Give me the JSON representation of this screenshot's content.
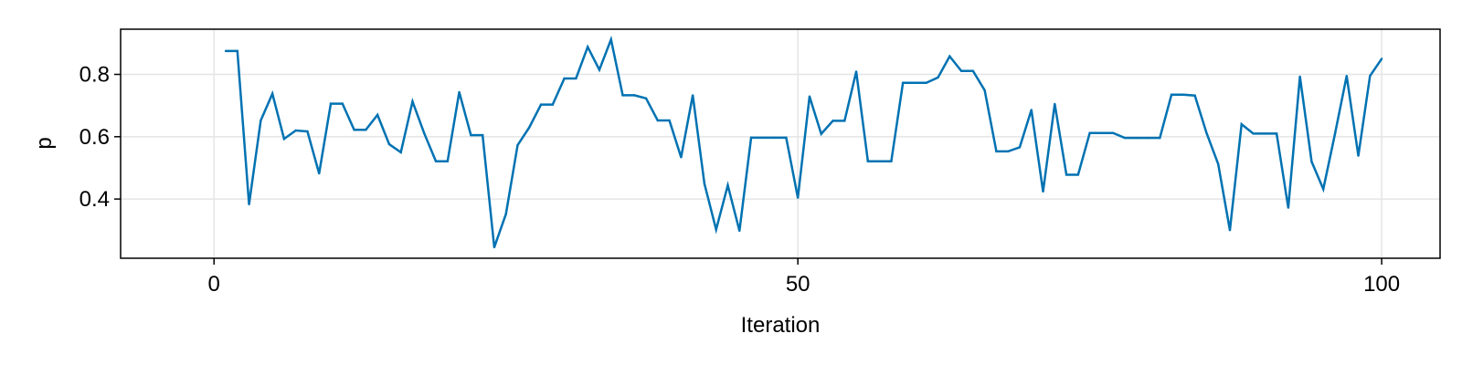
{
  "chart_data": {
    "type": "line",
    "title": "",
    "xlabel": "Iteration",
    "ylabel": "p",
    "xlim": [
      -8,
      105
    ],
    "ylim": [
      0.21,
      0.945
    ],
    "x_ticks": [
      0,
      50,
      100
    ],
    "x_tick_labels": [
      "0",
      "50",
      "100"
    ],
    "y_ticks": [
      0.4,
      0.6,
      0.8
    ],
    "y_tick_labels": [
      "0.4",
      "0.6",
      "0.8"
    ],
    "grid": true,
    "legend": "none",
    "series": [
      {
        "color": "#0072b2",
        "x": [
          1,
          2,
          3,
          4,
          5,
          6,
          7,
          8,
          9,
          10,
          11,
          12,
          13,
          14,
          15,
          16,
          17,
          18,
          19,
          20,
          21,
          22,
          23,
          24,
          25,
          26,
          27,
          28,
          29,
          30,
          31,
          32,
          33,
          34,
          35,
          36,
          37,
          38,
          39,
          40,
          41,
          42,
          43,
          44,
          45,
          46,
          47,
          48,
          49,
          50,
          51,
          52,
          53,
          54,
          55,
          56,
          57,
          58,
          59,
          60,
          61,
          62,
          63,
          64,
          65,
          66,
          67,
          68,
          69,
          70,
          71,
          72,
          73,
          74,
          75,
          76,
          77,
          78,
          79,
          80,
          81,
          82,
          83,
          84,
          85,
          86,
          87,
          88,
          89,
          90,
          91,
          92,
          93,
          94,
          95,
          96,
          97,
          98,
          99,
          100
        ],
        "values": [
          0.875,
          0.875,
          0.383,
          0.652,
          0.738,
          0.593,
          0.62,
          0.617,
          0.482,
          0.706,
          0.706,
          0.622,
          0.622,
          0.67,
          0.576,
          0.55,
          0.713,
          0.611,
          0.521,
          0.521,
          0.743,
          0.605,
          0.605,
          0.245,
          0.352,
          0.573,
          0.63,
          0.703,
          0.703,
          0.787,
          0.787,
          0.888,
          0.815,
          0.912,
          0.733,
          0.733,
          0.723,
          0.652,
          0.652,
          0.534,
          0.733,
          0.449,
          0.302,
          0.444,
          0.298,
          0.597,
          0.597,
          0.597,
          0.597,
          0.404,
          0.729,
          0.609,
          0.651,
          0.651,
          0.809,
          0.521,
          0.521,
          0.521,
          0.773,
          0.773,
          0.773,
          0.79,
          0.858,
          0.811,
          0.811,
          0.749,
          0.553,
          0.553,
          0.566,
          0.686,
          0.424,
          0.705,
          0.478,
          0.478,
          0.612,
          0.612,
          0.612,
          0.596,
          0.596,
          0.596,
          0.596,
          0.735,
          0.735,
          0.732,
          0.612,
          0.512,
          0.3,
          0.64,
          0.61,
          0.61,
          0.61,
          0.372,
          0.793,
          0.52,
          0.432,
          0.609,
          0.795,
          0.539,
          0.795,
          0.85
        ]
      }
    ]
  }
}
